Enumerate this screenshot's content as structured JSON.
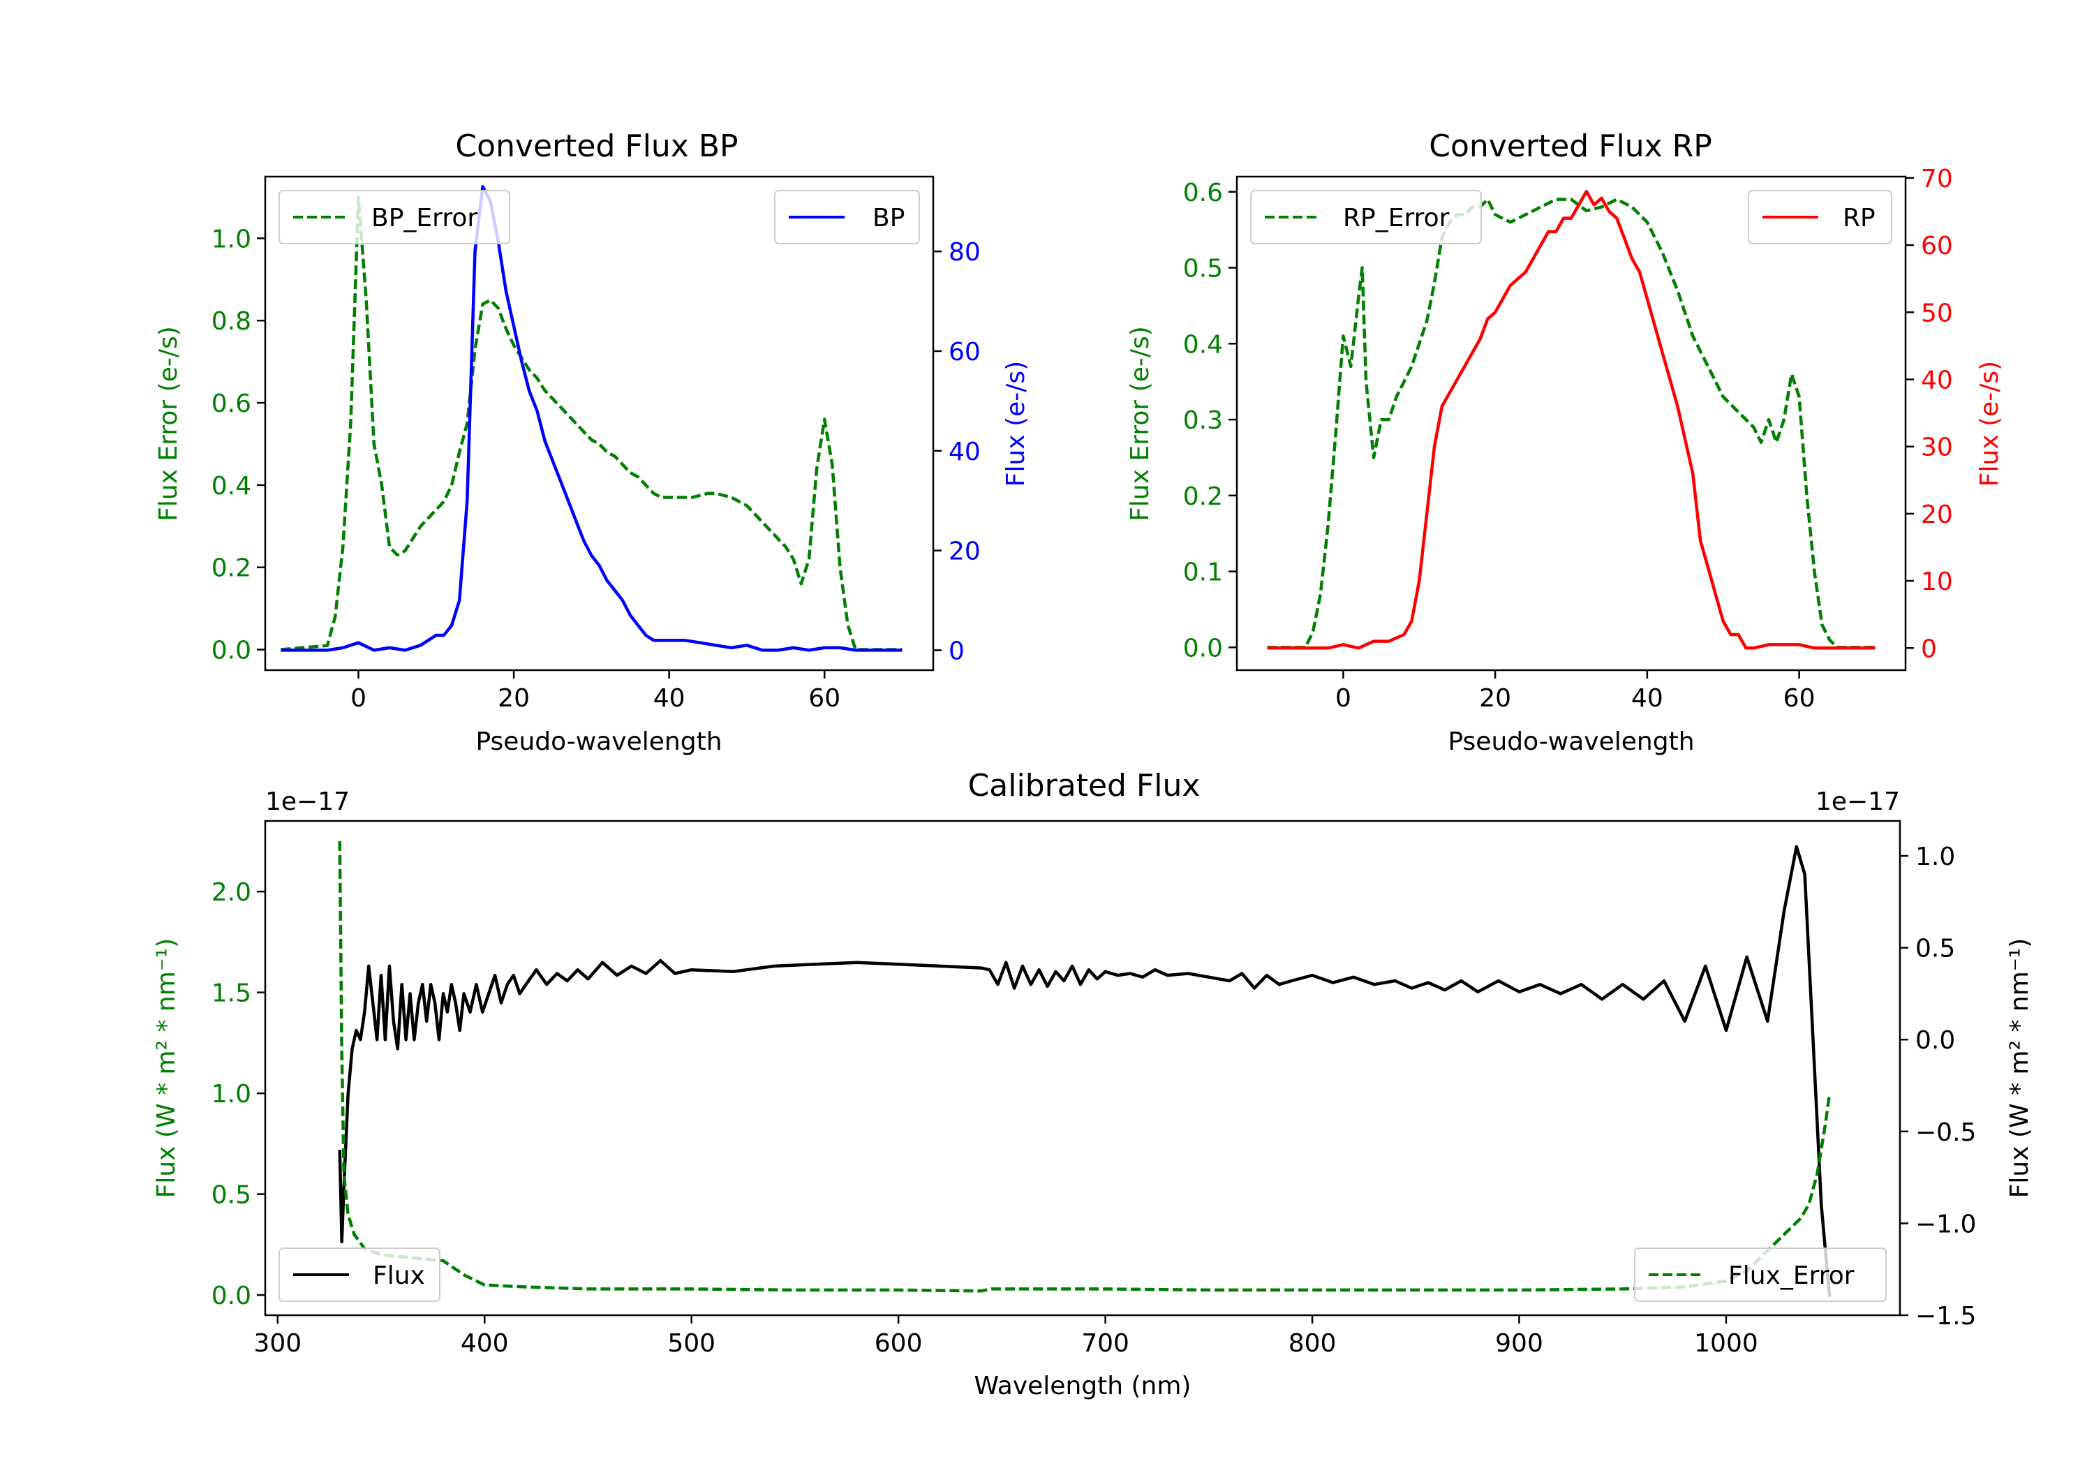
{
  "chart_data": [
    {
      "type": "line",
      "title": "Converted Flux BP",
      "xlabel": "Pseudo-wavelength",
      "xlim": [
        -12,
        74
      ],
      "xticks": [
        0,
        20,
        40,
        60
      ],
      "left_axis": {
        "label": "Flux Error (e-/s)",
        "color": "#008000",
        "ylim": [
          -0.05,
          1.15
        ],
        "ticks": [
          0.0,
          0.2,
          0.4,
          0.6,
          0.8,
          1.0
        ],
        "tick_labels": [
          "0.0",
          "0.2",
          "0.4",
          "0.6",
          "0.8",
          "1.0"
        ]
      },
      "right_axis": {
        "label": "Flux (e-/s)",
        "color": "#0000ff",
        "ylim": [
          -4,
          95
        ],
        "ticks": [
          0,
          20,
          40,
          60,
          80
        ],
        "tick_labels": [
          "0",
          "20",
          "40",
          "60",
          "80"
        ]
      },
      "series": [
        {
          "name": "BP_Error",
          "axis": "left",
          "color": "#008000",
          "dashed": true,
          "legend": "top-left",
          "x": [
            -10,
            -4,
            -3,
            -2,
            -1,
            0,
            1,
            2,
            3,
            4,
            5,
            6,
            7,
            8,
            9,
            10,
            11,
            12,
            13,
            14,
            15,
            16,
            17,
            18,
            19,
            20,
            21,
            22,
            23,
            24,
            25,
            26,
            27,
            28,
            29,
            30,
            31,
            32,
            33,
            34,
            35,
            36,
            37,
            38,
            39,
            40,
            41,
            42,
            43,
            44,
            45,
            46,
            47,
            48,
            49,
            50,
            51,
            52,
            53,
            54,
            55,
            56,
            57,
            58,
            59,
            60,
            61,
            62,
            63,
            64,
            65,
            66,
            67,
            68,
            69,
            70
          ],
          "values": [
            0.0,
            0.01,
            0.08,
            0.25,
            0.55,
            1.1,
            0.85,
            0.5,
            0.4,
            0.25,
            0.23,
            0.24,
            0.27,
            0.3,
            0.32,
            0.34,
            0.36,
            0.4,
            0.48,
            0.55,
            0.73,
            0.84,
            0.85,
            0.83,
            0.78,
            0.74,
            0.71,
            0.68,
            0.66,
            0.63,
            0.61,
            0.59,
            0.57,
            0.55,
            0.53,
            0.51,
            0.5,
            0.48,
            0.47,
            0.45,
            0.43,
            0.42,
            0.4,
            0.38,
            0.37,
            0.37,
            0.37,
            0.37,
            0.37,
            0.375,
            0.38,
            0.38,
            0.375,
            0.37,
            0.36,
            0.35,
            0.33,
            0.31,
            0.29,
            0.27,
            0.25,
            0.22,
            0.16,
            0.22,
            0.44,
            0.56,
            0.45,
            0.2,
            0.06,
            0.0,
            0.0,
            0.0,
            0.0,
            0.0,
            0.0,
            0.0
          ]
        },
        {
          "name": "BP",
          "axis": "right",
          "color": "#0000ff",
          "dashed": false,
          "legend": "top-right",
          "x": [
            -10,
            -8,
            -6,
            -4,
            -2,
            0,
            2,
            4,
            6,
            8,
            10,
            11,
            12,
            13,
            14,
            15,
            16,
            17,
            18,
            19,
            20,
            21,
            22,
            23,
            24,
            25,
            26,
            27,
            28,
            29,
            30,
            31,
            32,
            33,
            34,
            35,
            36,
            37,
            38,
            39,
            40,
            42,
            44,
            46,
            48,
            50,
            52,
            54,
            56,
            58,
            60,
            62,
            64,
            66,
            68,
            70
          ],
          "values": [
            0,
            0,
            0,
            0,
            0.5,
            1.5,
            0,
            0.5,
            0,
            1,
            3,
            3,
            5,
            10,
            30,
            80,
            93,
            90,
            82,
            72,
            65,
            58,
            52,
            48,
            42,
            38,
            34,
            30,
            26,
            22,
            19,
            17,
            14,
            12,
            10,
            7,
            5,
            3,
            2,
            2,
            2,
            2,
            1.5,
            1,
            0.5,
            1,
            0,
            0,
            0.5,
            0,
            0.5,
            0.5,
            0,
            0,
            0,
            0
          ]
        }
      ]
    },
    {
      "type": "line",
      "title": "Converted Flux RP",
      "xlabel": "Pseudo-wavelength",
      "xlim": [
        -14,
        74
      ],
      "xticks": [
        0,
        20,
        40,
        60
      ],
      "left_axis": {
        "label": "Flux Error (e-/s)",
        "color": "#008000",
        "ylim": [
          -0.03,
          0.62
        ],
        "ticks": [
          0.0,
          0.1,
          0.2,
          0.3,
          0.4,
          0.5,
          0.6
        ],
        "tick_labels": [
          "0.0",
          "0.1",
          "0.2",
          "0.3",
          "0.4",
          "0.5",
          "0.6"
        ]
      },
      "right_axis": {
        "label": "Flux (e-/s)",
        "color": "#ff0000",
        "ylim": [
          -3.3,
          70.2
        ],
        "ticks": [
          0,
          10,
          20,
          30,
          40,
          50,
          60,
          70
        ],
        "tick_labels": [
          "0",
          "10",
          "20",
          "30",
          "40",
          "50",
          "60",
          "70"
        ]
      },
      "series": [
        {
          "name": "RP_Error",
          "axis": "left",
          "color": "#008000",
          "dashed": true,
          "legend": "top-left",
          "x": [
            -10,
            -5,
            -4,
            -3,
            -2,
            -1,
            0,
            1,
            2,
            2.5,
            3,
            4,
            5,
            6,
            7,
            8,
            9,
            10,
            11,
            12,
            13,
            14,
            15,
            16,
            17,
            18,
            19,
            20,
            22,
            24,
            26,
            28,
            30,
            32,
            34,
            36,
            38,
            40,
            42,
            44,
            46,
            48,
            50,
            52,
            54,
            55,
            56,
            57,
            58,
            59,
            60,
            61,
            62,
            63,
            64,
            65,
            70
          ],
          "values": [
            0.0,
            0.0,
            0.02,
            0.07,
            0.16,
            0.28,
            0.41,
            0.37,
            0.46,
            0.5,
            0.35,
            0.25,
            0.3,
            0.3,
            0.33,
            0.35,
            0.37,
            0.4,
            0.43,
            0.48,
            0.54,
            0.56,
            0.57,
            0.57,
            0.58,
            0.58,
            0.59,
            0.57,
            0.56,
            0.57,
            0.58,
            0.59,
            0.59,
            0.575,
            0.58,
            0.59,
            0.58,
            0.56,
            0.52,
            0.47,
            0.41,
            0.37,
            0.33,
            0.31,
            0.29,
            0.27,
            0.3,
            0.27,
            0.3,
            0.36,
            0.33,
            0.2,
            0.1,
            0.03,
            0.01,
            0.0,
            0.0
          ]
        },
        {
          "name": "RP",
          "axis": "right",
          "color": "#ff0000",
          "dashed": false,
          "legend": "top-right",
          "x": [
            -10,
            -5,
            -2,
            0,
            2,
            4,
            6,
            8,
            9,
            10,
            11,
            12,
            13,
            14,
            15,
            16,
            17,
            18,
            19,
            20,
            21,
            22,
            23,
            24,
            25,
            26,
            27,
            28,
            29,
            30,
            31,
            32,
            33,
            34,
            35,
            36,
            37,
            38,
            39,
            40,
            42,
            44,
            46,
            47,
            48,
            49,
            50,
            51,
            52,
            53,
            54,
            56,
            58,
            60,
            62,
            64,
            66,
            70
          ],
          "values": [
            0,
            0,
            0,
            0.5,
            0,
            1,
            1,
            2,
            4,
            10,
            20,
            30,
            36,
            38,
            40,
            42,
            44,
            46,
            49,
            50,
            52,
            54,
            55,
            56,
            58,
            60,
            62,
            62,
            64,
            64,
            66,
            68,
            66,
            67,
            65,
            64,
            61,
            58,
            56,
            52,
            44,
            36,
            26,
            16,
            12,
            8,
            4,
            2,
            2,
            0,
            0,
            0.5,
            0.5,
            0.5,
            0,
            0,
            0,
            0
          ]
        }
      ]
    },
    {
      "type": "line",
      "title": "Calibrated Flux",
      "xlabel": "Wavelength (nm)",
      "xlim": [
        294,
        1084
      ],
      "xticks": [
        300,
        400,
        500,
        600,
        700,
        800,
        900,
        1000
      ],
      "left_axis": {
        "label": "Flux (W * m² * nm⁻¹)",
        "offset_text": "1e−17",
        "color": "#008000",
        "ylim": [
          -0.1,
          2.35
        ],
        "ticks": [
          0.0,
          0.5,
          1.0,
          1.5,
          2.0
        ],
        "tick_labels": [
          "0.0",
          "0.5",
          "1.0",
          "1.5",
          "2.0"
        ]
      },
      "right_axis": {
        "label": "Flux (W * m² * nm⁻¹)",
        "offset_text": "1e−17",
        "color": "#000000",
        "ylim": [
          -1.5,
          1.19
        ],
        "ticks": [
          -1.5,
          -1.0,
          -0.5,
          0.0,
          0.5,
          1.0
        ],
        "tick_labels": [
          "−1.5",
          "−1.0",
          "−0.5",
          "0.0",
          "0.5",
          "1.0"
        ]
      },
      "series": [
        {
          "name": "Flux",
          "axis": "right",
          "color": "#000000",
          "dashed": false,
          "legend": "bottom-left",
          "x": [
            330,
            331,
            332,
            334,
            336,
            338,
            340,
            342,
            344,
            346,
            348,
            350,
            352,
            354,
            356,
            358,
            360,
            362,
            364,
            366,
            368,
            370,
            372,
            374,
            376,
            378,
            380,
            382,
            384,
            386,
            388,
            390,
            393,
            396,
            399,
            402,
            405,
            408,
            411,
            414,
            417,
            420,
            425,
            430,
            435,
            440,
            445,
            450,
            457,
            464,
            471,
            478,
            485,
            492,
            500,
            520,
            540,
            560,
            580,
            600,
            620,
            640,
            644,
            648,
            652,
            656,
            660,
            664,
            668,
            672,
            676,
            680,
            684,
            688,
            692,
            696,
            700,
            706,
            712,
            718,
            724,
            730,
            740,
            750,
            760,
            766,
            772,
            778,
            784,
            790,
            800,
            810,
            820,
            830,
            840,
            848,
            856,
            864,
            872,
            880,
            890,
            900,
            910,
            920,
            930,
            940,
            950,
            960,
            970,
            980,
            990,
            1000,
            1010,
            1020,
            1028,
            1034,
            1038,
            1042,
            1046,
            1050
          ],
          "values": [
            -0.6,
            -1.1,
            -0.8,
            -0.3,
            -0.05,
            0.05,
            0.0,
            0.15,
            0.4,
            0.2,
            0.0,
            0.35,
            0.0,
            0.4,
            0.1,
            -0.05,
            0.3,
            0.0,
            0.25,
            0.0,
            0.2,
            0.3,
            0.1,
            0.3,
            0.2,
            0.0,
            0.25,
            0.15,
            0.3,
            0.2,
            0.05,
            0.25,
            0.15,
            0.3,
            0.15,
            0.25,
            0.35,
            0.2,
            0.3,
            0.35,
            0.25,
            0.3,
            0.38,
            0.3,
            0.36,
            0.32,
            0.38,
            0.33,
            0.42,
            0.35,
            0.4,
            0.36,
            0.43,
            0.36,
            0.38,
            0.37,
            0.4,
            0.41,
            0.42,
            0.41,
            0.4,
            0.39,
            0.38,
            0.3,
            0.42,
            0.28,
            0.4,
            0.3,
            0.38,
            0.29,
            0.37,
            0.32,
            0.4,
            0.3,
            0.38,
            0.33,
            0.37,
            0.35,
            0.36,
            0.34,
            0.38,
            0.35,
            0.36,
            0.34,
            0.32,
            0.36,
            0.28,
            0.35,
            0.3,
            0.32,
            0.35,
            0.31,
            0.34,
            0.3,
            0.32,
            0.28,
            0.31,
            0.27,
            0.32,
            0.26,
            0.32,
            0.26,
            0.3,
            0.25,
            0.3,
            0.22,
            0.3,
            0.22,
            0.32,
            0.1,
            0.4,
            0.05,
            0.45,
            0.1,
            0.7,
            1.05,
            0.9,
            0.0,
            -0.9,
            -1.4
          ]
        },
        {
          "name": "Flux_Error",
          "axis": "left",
          "color": "#008000",
          "dashed": true,
          "legend": "bottom-right",
          "x": [
            330,
            331,
            332,
            334,
            337,
            342,
            350,
            360,
            370,
            380,
            390,
            400,
            420,
            450,
            500,
            550,
            600,
            640,
            645,
            700,
            750,
            800,
            850,
            900,
            950,
            980,
            1000,
            1010,
            1020,
            1030,
            1036,
            1040,
            1044,
            1048,
            1050
          ],
          "values": [
            2.25,
            1.2,
            0.6,
            0.4,
            0.3,
            0.23,
            0.2,
            0.19,
            0.18,
            0.17,
            0.1,
            0.05,
            0.04,
            0.03,
            0.03,
            0.025,
            0.025,
            0.02,
            0.03,
            0.03,
            0.025,
            0.025,
            0.025,
            0.025,
            0.03,
            0.04,
            0.07,
            0.12,
            0.22,
            0.32,
            0.38,
            0.45,
            0.6,
            0.85,
            1.0
          ]
        }
      ]
    }
  ]
}
